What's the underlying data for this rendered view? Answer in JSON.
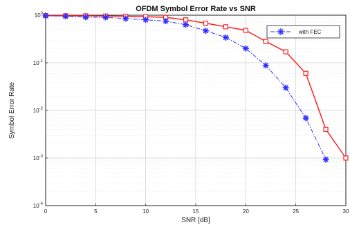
{
  "chart_data": {
    "type": "line",
    "title": "OFDM Symbol Error Rate vs SNR",
    "xlabel": "SNR [dB]",
    "ylabel": "Symbol Error Rate",
    "xlim": [
      0,
      30
    ],
    "ylim": [
      0.0001,
      1
    ],
    "yscale": "log",
    "grid": true,
    "legend_position": "top-right",
    "xticks": [
      0,
      5,
      10,
      15,
      20,
      25,
      30
    ],
    "xtick_labels": [
      "0",
      "5",
      "10",
      "15",
      "20",
      "25",
      "30"
    ],
    "yticks": [
      1,
      0.1,
      0.01,
      0.001,
      0.0001
    ],
    "ytick_labels": [
      {
        "base": "10",
        "exp": "0"
      },
      {
        "base": "10",
        "exp": "-1"
      },
      {
        "base": "10",
        "exp": "-2"
      },
      {
        "base": "10",
        "exp": "-3"
      },
      {
        "base": "10",
        "exp": "-4"
      }
    ],
    "series": [
      {
        "color": "#ff2020",
        "marker": "square",
        "line": "solid",
        "x": [
          0,
          2,
          4,
          6,
          8,
          10,
          12,
          14,
          16,
          18,
          20,
          22,
          24,
          26,
          28,
          30
        ],
        "y": [
          0.98,
          0.97,
          0.97,
          0.96,
          0.95,
          0.93,
          0.9,
          0.8,
          0.68,
          0.57,
          0.48,
          0.28,
          0.17,
          0.06,
          0.004,
          0.001
        ]
      },
      {
        "name": "with FEC",
        "color": "#3030ff",
        "marker": "star",
        "line": "dashdot",
        "x": [
          0,
          2,
          4,
          6,
          8,
          10,
          12,
          14,
          16,
          18,
          20,
          22,
          24,
          26,
          28
        ],
        "y": [
          0.97,
          0.95,
          0.91,
          0.9,
          0.85,
          0.8,
          0.75,
          0.63,
          0.47,
          0.34,
          0.2,
          0.088,
          0.03,
          0.0069,
          0.00093
        ]
      }
    ]
  }
}
